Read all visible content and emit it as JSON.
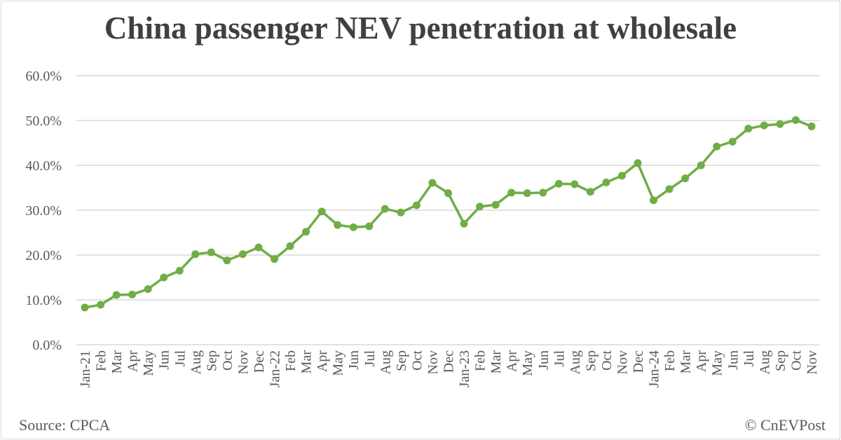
{
  "chart_data": {
    "type": "line",
    "title": "China passenger NEV penetration at wholesale",
    "source": "Source: CPCA",
    "credit": "© CnEVPost",
    "xlabel": "",
    "ylabel": "",
    "ylim": [
      0,
      60
    ],
    "yticks": [
      "0.0%",
      "10.0%",
      "20.0%",
      "30.0%",
      "40.0%",
      "50.0%",
      "60.0%"
    ],
    "grid": true,
    "color": "#70ad47",
    "categories": [
      "Jan-21",
      "Feb",
      "Mar",
      "Apr",
      "May",
      "Jun",
      "Jul",
      "Aug",
      "Sep",
      "Oct",
      "Nov",
      "Dec",
      "Jan-22",
      "Feb",
      "Mar",
      "Apr",
      "May",
      "Jun",
      "Jul",
      "Aug",
      "Sep",
      "Oct",
      "Nov",
      "Dec",
      "Jan-23",
      "Feb",
      "Mar",
      "Apr",
      "May",
      "Jun",
      "Jul",
      "Aug",
      "Sep",
      "Oct",
      "Nov",
      "Dec",
      "Jan-24",
      "Feb",
      "Mar",
      "Apr",
      "May",
      "Jun",
      "Jul",
      "Aug",
      "Sep",
      "Oct",
      "Nov"
    ],
    "values": [
      8.3,
      8.9,
      11.1,
      11.2,
      12.4,
      15.0,
      16.5,
      20.2,
      20.6,
      18.8,
      20.2,
      21.7,
      19.1,
      22.0,
      25.2,
      29.7,
      26.7,
      26.2,
      26.4,
      30.3,
      29.5,
      31.1,
      36.1,
      33.8,
      27.0,
      30.8,
      31.2,
      33.9,
      33.8,
      33.9,
      35.9,
      35.8,
      34.1,
      36.2,
      37.7,
      40.5,
      32.2,
      34.7,
      37.1,
      40.0,
      44.2,
      45.3,
      48.2,
      48.9,
      49.2,
      50.1,
      48.7
    ]
  }
}
